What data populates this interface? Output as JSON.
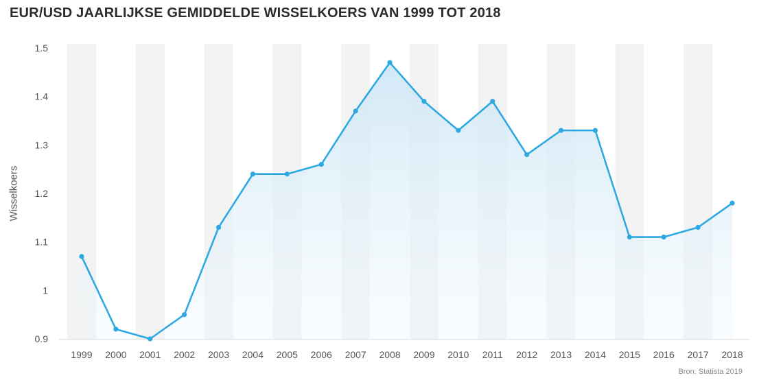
{
  "chart_data": {
    "type": "line",
    "title": "EUR/USD JAARLIJKSE GEMIDDELDE WISSELKOERS VAN 1999 TOT 2018",
    "xlabel": "",
    "ylabel": "Wisselkoers",
    "source": "Bron: Statista 2019",
    "categories": [
      "1999",
      "2000",
      "2001",
      "2002",
      "2003",
      "2004",
      "2005",
      "2006",
      "2007",
      "2008",
      "2009",
      "2010",
      "2011",
      "2012",
      "2013",
      "2014",
      "2015",
      "2016",
      "2017",
      "2018"
    ],
    "values": [
      1.07,
      0.92,
      0.9,
      0.95,
      1.13,
      1.24,
      1.24,
      1.26,
      1.37,
      1.47,
      1.39,
      1.33,
      1.39,
      1.28,
      1.33,
      1.33,
      1.11,
      1.11,
      1.13,
      1.18
    ],
    "ylim": [
      0.9,
      1.5
    ],
    "yticks": [
      "0.9",
      "1",
      "1.1",
      "1.2",
      "1.3",
      "1.4",
      "1.5"
    ],
    "grid": "alternating vertical bands",
    "legend": "none",
    "colors": {
      "line": "#2ea8e0",
      "fill": "#d6ecf8",
      "band": "#f3f3f3"
    }
  }
}
